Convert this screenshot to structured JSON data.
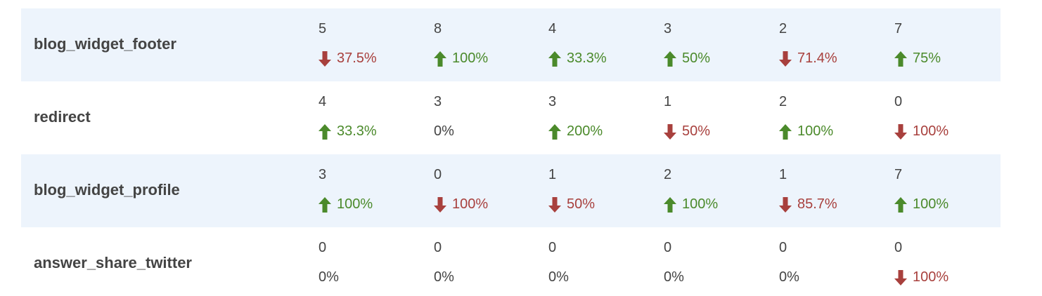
{
  "table": {
    "rows": [
      {
        "label": "blog_widget_footer",
        "cells": [
          {
            "count": 5,
            "change": "37.5%",
            "trend": "down"
          },
          {
            "count": 8,
            "change": "100%",
            "trend": "up"
          },
          {
            "count": 4,
            "change": "33.3%",
            "trend": "up"
          },
          {
            "count": 3,
            "change": "50%",
            "trend": "up"
          },
          {
            "count": 2,
            "change": "71.4%",
            "trend": "down"
          },
          {
            "count": 7,
            "change": "75%",
            "trend": "up"
          }
        ]
      },
      {
        "label": "redirect",
        "cells": [
          {
            "count": 4,
            "change": "33.3%",
            "trend": "up"
          },
          {
            "count": 3,
            "change": "0%"
          },
          {
            "count": 3,
            "change": "200%",
            "trend": "up"
          },
          {
            "count": 1,
            "change": "50%",
            "trend": "down"
          },
          {
            "count": 2,
            "change": "100%",
            "trend": "up"
          },
          {
            "count": 0,
            "change": "100%",
            "trend": "down"
          }
        ]
      },
      {
        "label": "blog_widget_profile",
        "cells": [
          {
            "count": 3,
            "change": "100%",
            "trend": "up"
          },
          {
            "count": 0,
            "change": "100%",
            "trend": "down"
          },
          {
            "count": 1,
            "change": "50%",
            "trend": "down"
          },
          {
            "count": 2,
            "change": "100%",
            "trend": "up"
          },
          {
            "count": 1,
            "change": "85.7%",
            "trend": "down"
          },
          {
            "count": 7,
            "change": "100%",
            "trend": "up"
          }
        ]
      },
      {
        "label": "answer_share_twitter",
        "cells": [
          {
            "count": 0,
            "change": "0%"
          },
          {
            "count": 0,
            "change": "0%"
          },
          {
            "count": 0,
            "change": "0%"
          },
          {
            "count": 0,
            "change": "0%"
          },
          {
            "count": 0,
            "change": "0%"
          },
          {
            "count": 0,
            "change": "100%",
            "trend": "down"
          }
        ]
      }
    ]
  }
}
